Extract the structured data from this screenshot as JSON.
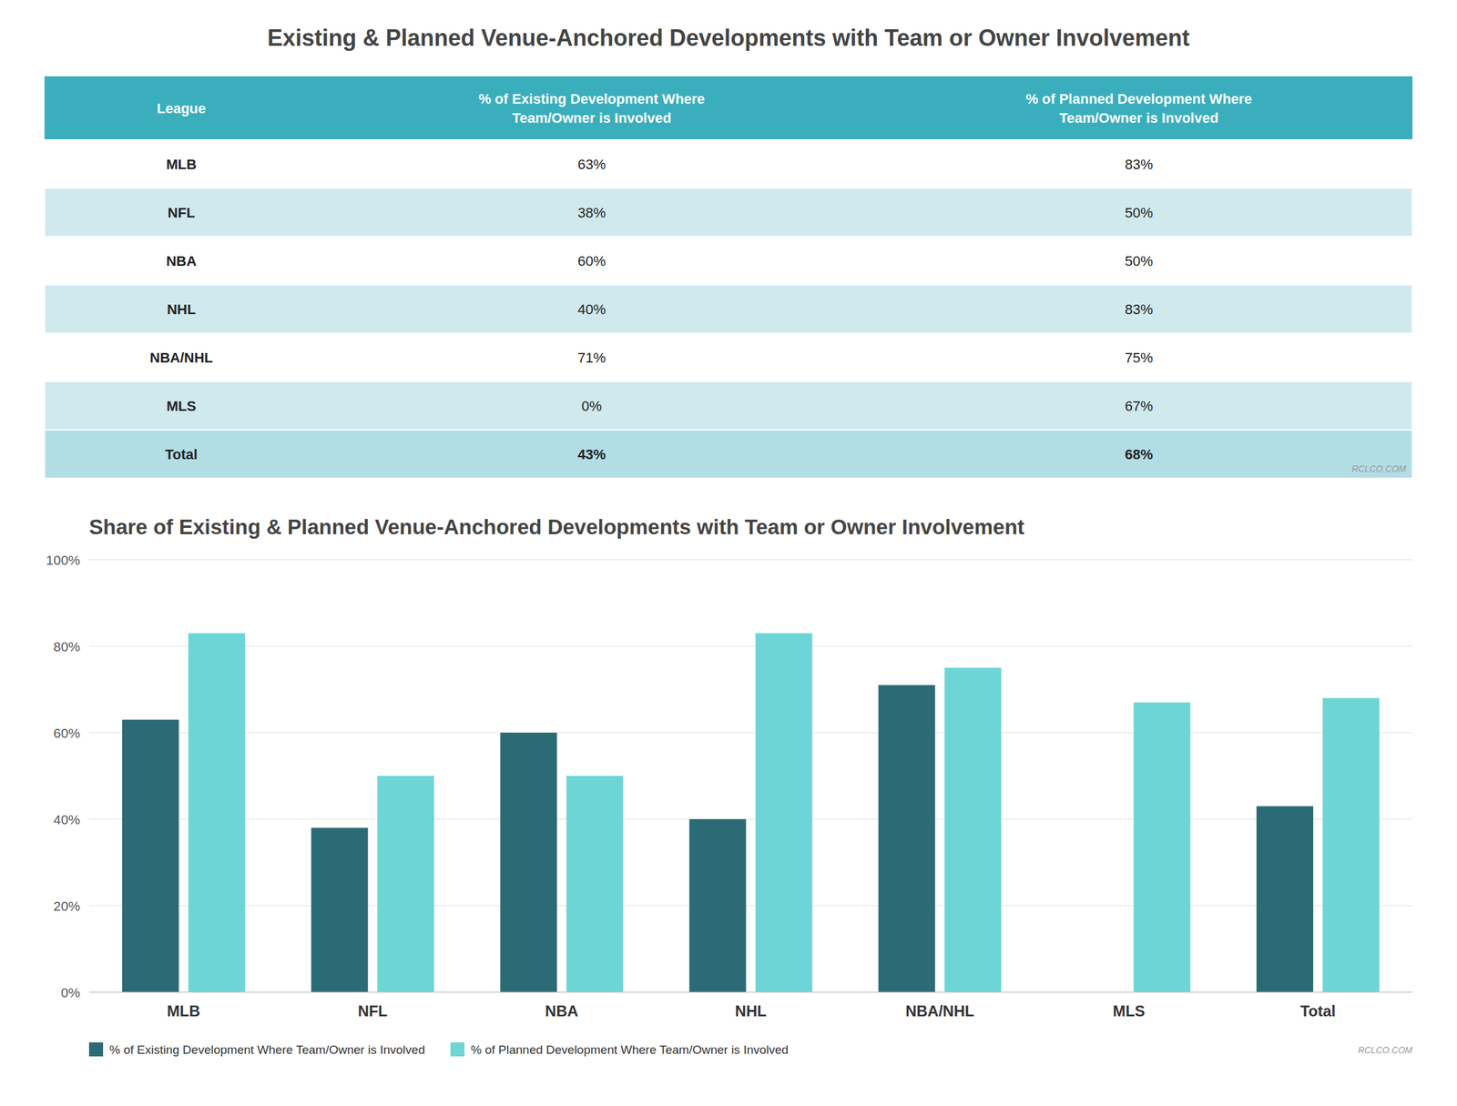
{
  "chart_data": [
    {
      "type": "table",
      "title": "Existing & Planned Venue-Anchored Developments with Team or Owner Involvement",
      "xlabel": "League",
      "categories": [
        "MLB",
        "NFL",
        "NBA",
        "NHL",
        "NBA/NHL",
        "MLS",
        "Total"
      ],
      "series": [
        {
          "name": "% of Existing Development Where\nTeam/Owner is Involved",
          "values": [
            63,
            38,
            60,
            40,
            71,
            0,
            43
          ],
          "value_labels": [
            "63%",
            "38%",
            "60%",
            "40%",
            "71%",
            "0%",
            "43%"
          ]
        },
        {
          "name": "% of Planned Development Where\nTeam/Owner is Involved",
          "values": [
            83,
            50,
            50,
            83,
            75,
            67,
            68
          ],
          "value_labels": [
            "83%",
            "50%",
            "50%",
            "83%",
            "75%",
            "67%",
            "68%"
          ]
        }
      ],
      "annotations": [
        "RCLCO.COM"
      ]
    },
    {
      "type": "bar",
      "title": "Share of Existing & Planned Venue-Anchored Developments with Team or Owner Involvement",
      "categories": [
        "MLB",
        "NFL",
        "NBA",
        "NHL",
        "NBA/NHL",
        "MLS",
        "Total"
      ],
      "series": [
        {
          "name": "% of Existing Development Where Team/Owner is Involved",
          "color": "#2b6b76",
          "values": [
            63,
            38,
            60,
            40,
            71,
            0,
            43
          ]
        },
        {
          "name": "% of Planned Development Where Team/Owner is Involved",
          "color": "#6dd5d5",
          "values": [
            83,
            50,
            50,
            83,
            75,
            67,
            68
          ]
        }
      ],
      "ylim": [
        0,
        100
      ],
      "yticks": [
        {
          "value": 0,
          "label": "0%"
        },
        {
          "value": 20,
          "label": "20%"
        },
        {
          "value": 40,
          "label": "40%"
        },
        {
          "value": 60,
          "label": "60%"
        },
        {
          "value": 80,
          "label": "80%"
        },
        {
          "value": 100,
          "label": "100%"
        }
      ],
      "grid": true,
      "legend": "lower left",
      "annotations": [
        "RCLCO.COM"
      ]
    }
  ]
}
